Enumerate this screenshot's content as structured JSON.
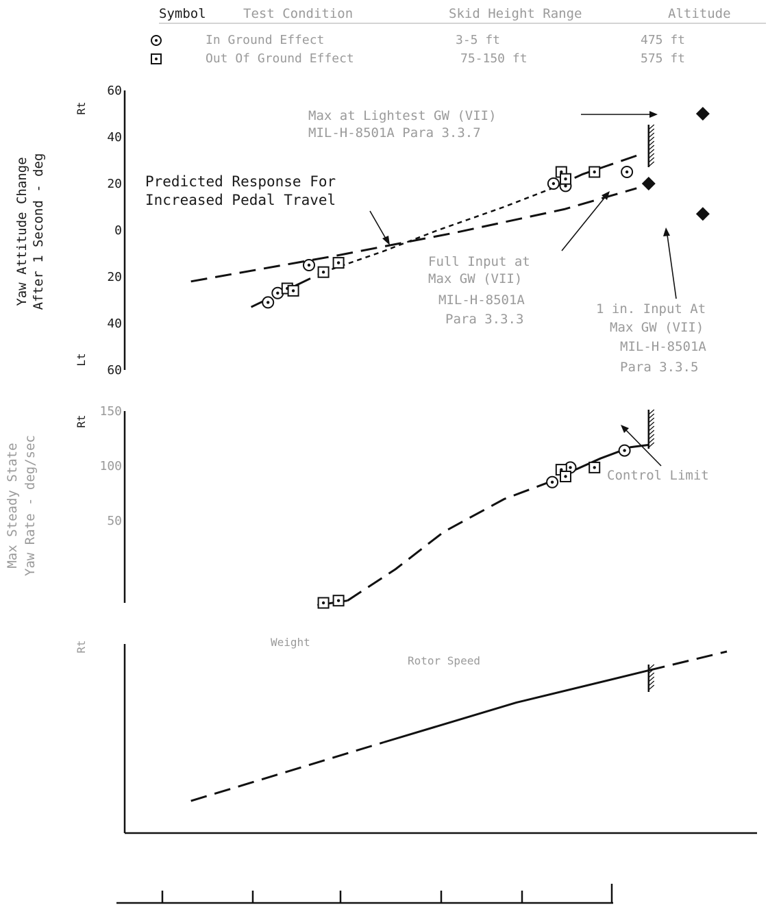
{
  "legend": {
    "headers": [
      "Symbol",
      "Test Condition",
      "Skid Height Range",
      "Altitude"
    ],
    "rows": [
      {
        "symbol": "circle-dot",
        "condition": "In Ground Effect",
        "skid": "3-5 ft",
        "altitude": "475 ft"
      },
      {
        "symbol": "square-dot",
        "condition": "Out Of Ground Effect",
        "skid": "75-150 ft",
        "altitude": "575 ft"
      }
    ]
  },
  "chart_data": [
    {
      "type": "scatter",
      "panel": "top",
      "ylabel_lines": [
        "Yaw Attitude Change",
        "After 1 Second - deg"
      ],
      "direction_labels": {
        "top": "Rt",
        "bottom": "Lt"
      },
      "y_ticks": [
        "60",
        "40",
        "20",
        "0",
        "20",
        "40",
        "60"
      ],
      "ylim": [
        -60,
        60
      ],
      "xlim": [
        -5.5,
        5
      ],
      "series": [
        {
          "name": "In Ground Effect",
          "symbol": "circle-dot",
          "points": [
            [
              -3.12,
              -31
            ],
            [
              -2.96,
              -27
            ],
            [
              -2.44,
              -15
            ],
            [
              1.62,
              20
            ],
            [
              1.82,
              19
            ],
            [
              2.84,
              25
            ]
          ]
        },
        {
          "name": "Out Of Ground Effect",
          "symbol": "square-dot",
          "points": [
            [
              -2.8,
              -25
            ],
            [
              -2.7,
              -26
            ],
            [
              -2.2,
              -18
            ],
            [
              -1.95,
              -14
            ],
            [
              1.75,
              25
            ],
            [
              1.82,
              22
            ],
            [
              2.3,
              25
            ]
          ]
        }
      ],
      "curves": [
        {
          "style": "dashed",
          "points": [
            [
              -3.4,
              -33
            ],
            [
              -2.2,
              -18
            ]
          ]
        },
        {
          "style": "dotted",
          "points": [
            [
              -2.2,
              -18
            ],
            [
              -1.2,
              -9
            ],
            [
              -0.3,
              0
            ],
            [
              0.8,
              10
            ],
            [
              1.6,
              18
            ]
          ]
        },
        {
          "style": "dashed",
          "points": [
            [
              1.6,
              18
            ],
            [
              2.1,
              24
            ],
            [
              3.0,
              32
            ]
          ]
        },
        {
          "style": "dashed",
          "points": [
            [
              -4.4,
              -22
            ],
            [
              -2.0,
              -11
            ],
            [
              0.0,
              -1
            ],
            [
              1.8,
              9
            ],
            [
              3.0,
              18
            ]
          ]
        }
      ],
      "control_limit_x": 3.2,
      "diamonds": [
        {
          "x": 3.2,
          "y": 20
        },
        {
          "x": 4.1,
          "y": 50
        },
        {
          "x": 4.1,
          "y": 7
        }
      ],
      "annotations": [
        {
          "lines": [
            "Max at Lightest GW (VII)",
            "MIL-H-8501A Para 3.3.7"
          ]
        },
        {
          "lines": [
            "Predicted Response For",
            "Increased Pedal Travel"
          ]
        },
        {
          "lines": [
            "Full Input at",
            "Max GW (VII)",
            "MIL-H-8501A",
            "Para 3.3.3"
          ]
        },
        {
          "lines": [
            "1 in. Input At",
            "Max GW (VII)",
            "MIL-H-8501A",
            "Para 3.3.5"
          ]
        }
      ]
    },
    {
      "type": "scatter",
      "panel": "middle",
      "ylabel_lines": [
        "Max Steady State",
        "Yaw Rate - deg/sec"
      ],
      "direction_labels": {
        "top": "Rt"
      },
      "y_ticks": [
        "150",
        "100",
        "50"
      ],
      "ylim": [
        -20,
        150
      ],
      "xlim": [
        -5.5,
        5
      ],
      "series": [
        {
          "name": "In Ground Effect",
          "symbol": "circle-dot",
          "points": [
            [
              1.6,
              87
            ],
            [
              1.9,
              100
            ],
            [
              2.8,
              115
            ]
          ]
        },
        {
          "name": "Out Of Ground Effect",
          "symbol": "square-dot",
          "points": [
            [
              -2.2,
              -20
            ],
            [
              -1.95,
              -18
            ],
            [
              1.75,
              98
            ],
            [
              1.82,
              92
            ],
            [
              2.3,
              100
            ]
          ]
        }
      ],
      "curves": [
        {
          "style": "solid",
          "points": [
            [
              -2.3,
              -22
            ],
            [
              -1.8,
              -18
            ]
          ]
        },
        {
          "style": "dashed",
          "points": [
            [
              -1.8,
              -18
            ],
            [
              -1.0,
              10
            ],
            [
              -0.2,
              43
            ],
            [
              0.8,
              72
            ],
            [
              1.6,
              88
            ]
          ]
        },
        {
          "style": "solid",
          "points": [
            [
              1.9,
              96
            ],
            [
              2.4,
              108
            ],
            [
              2.9,
              118
            ],
            [
              3.2,
              120
            ]
          ]
        }
      ],
      "control_limit_x": 3.2,
      "annotations": [
        {
          "lines": [
            "Control Limit"
          ]
        }
      ]
    },
    {
      "type": "line",
      "panel": "bottom",
      "direction_labels": {
        "top": "Rt"
      },
      "ylim": [
        0,
        10
      ],
      "xlim": [
        -5.5,
        5
      ],
      "curves": [
        {
          "style": "dashed",
          "points": [
            [
              -4.4,
              1.7
            ],
            [
              -1.2,
              4.8
            ]
          ]
        },
        {
          "style": "solid",
          "points": [
            [
              -1.2,
              4.8
            ],
            [
              1.0,
              6.9
            ],
            [
              3.2,
              8.6
            ]
          ]
        },
        {
          "style": "dashed",
          "points": [
            [
              3.2,
              8.6
            ],
            [
              4.5,
              9.6
            ]
          ]
        }
      ],
      "control_limit_x": 3.2,
      "annotations": [
        {
          "lines": [
            "Weight",
            "Rotor Speed"
          ]
        }
      ]
    }
  ]
}
